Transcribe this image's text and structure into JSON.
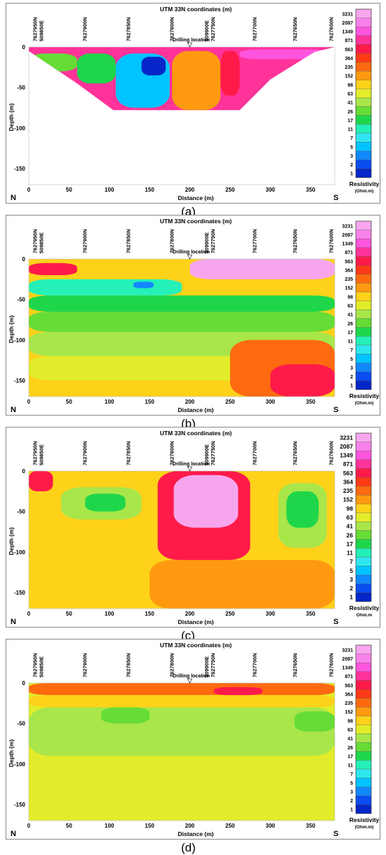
{
  "figure": {
    "captions": [
      "(a)",
      "(b)",
      "(c)",
      "(d)"
    ],
    "drilling_label": "Drilling location",
    "compass": {
      "left": "N",
      "right": "S"
    }
  },
  "chart_data": [
    {
      "panel": "a",
      "type": "heatmap",
      "title": "UTM 33N coordinates (m)",
      "xlabel": "Distance (m)",
      "ylabel": "Depth (m)",
      "xlim": [
        0,
        380
      ],
      "ylim": [
        -170,
        0
      ],
      "x_ticks": [
        0,
        50,
        100,
        150,
        200,
        250,
        300,
        350
      ],
      "y_ticks": [
        0,
        -50,
        -100,
        -150
      ],
      "top_labels": [
        {
          "x": 10,
          "text": [
            "7627950N",
            "509850E"
          ]
        },
        {
          "x": 72,
          "text": [
            "7627900N"
          ]
        },
        {
          "x": 126,
          "text": [
            "7627850N"
          ]
        },
        {
          "x": 180,
          "text": [
            "7627800N"
          ]
        },
        {
          "x": 223,
          "text": [
            "509900E",
            "7627750N"
          ]
        },
        {
          "x": 283,
          "text": [
            "7627700N"
          ]
        },
        {
          "x": 333,
          "text": [
            "7627650N"
          ]
        },
        {
          "x": 378,
          "text": [
            "7627600N"
          ]
        }
      ],
      "drilling_x": 200,
      "legend": {
        "title": "Resistivity",
        "unit": "(Ohm.m)",
        "values": [
          "3231",
          "2087",
          "1349",
          "871",
          "563",
          "364",
          "235",
          "152",
          "98",
          "63",
          "41",
          "26",
          "17",
          "11",
          "7",
          "5",
          "3",
          "2",
          "1"
        ]
      },
      "data_extent": "trapezoid, max depth approx -78 m between x 108 and 238",
      "resistivity_blocks": [
        {
          "x": [
            0,
            380
          ],
          "y": [
            0,
            -8
          ],
          "value": 871
        },
        {
          "x": [
            0,
            60
          ],
          "y": [
            -8,
            -30
          ],
          "value": 26
        },
        {
          "x": [
            60,
            108
          ],
          "y": [
            -8,
            -45
          ],
          "value": 17
        },
        {
          "x": [
            108,
            175
          ],
          "y": [
            -8,
            -75
          ],
          "value": 5
        },
        {
          "x": [
            140,
            170
          ],
          "y": [
            -12,
            -35
          ],
          "value": 1
        },
        {
          "x": [
            178,
            238
          ],
          "y": [
            -5,
            -78
          ],
          "value": 152
        },
        {
          "x": [
            238,
            262
          ],
          "y": [
            -5,
            -60
          ],
          "value": 563
        },
        {
          "x": [
            262,
            380
          ],
          "y": [
            -3,
            -15
          ],
          "value": 1349
        }
      ]
    },
    {
      "panel": "b",
      "type": "heatmap",
      "title": "UTM 33N coordinates (m)",
      "xlabel": "Distance (m)",
      "ylabel": "Depth (m)",
      "xlim": [
        0,
        380
      ],
      "ylim": [
        -170,
        0
      ],
      "x_ticks": [
        0,
        50,
        100,
        150,
        200,
        250,
        300,
        350
      ],
      "y_ticks": [
        0,
        -50,
        -100,
        -150
      ],
      "top_labels": [
        {
          "x": 10,
          "text": [
            "7627950N",
            "509850E"
          ]
        },
        {
          "x": 72,
          "text": [
            "7627900N"
          ]
        },
        {
          "x": 126,
          "text": [
            "7627850N"
          ]
        },
        {
          "x": 180,
          "text": [
            "7627800N"
          ]
        },
        {
          "x": 223,
          "text": [
            "509900E",
            "7627750N"
          ]
        },
        {
          "x": 283,
          "text": [
            "7627700N"
          ]
        },
        {
          "x": 333,
          "text": [
            "7627650N"
          ]
        },
        {
          "x": 378,
          "text": [
            "7627600N"
          ]
        }
      ],
      "drilling_x": 200,
      "legend": {
        "title": "Resistivity",
        "unit": "(Ohm.m)",
        "values": [
          "3231",
          "2087",
          "1349",
          "871",
          "563",
          "364",
          "235",
          "152",
          "98",
          "63",
          "41",
          "26",
          "17",
          "11",
          "7",
          "5",
          "3",
          "2",
          "1"
        ]
      },
      "resistivity_blocks": [
        {
          "x": [
            0,
            380
          ],
          "y": [
            -150,
            -170
          ],
          "value": 98
        },
        {
          "x": [
            0,
            380
          ],
          "y": [
            -120,
            -150
          ],
          "value": 63
        },
        {
          "x": [
            0,
            380
          ],
          "y": [
            -90,
            -120
          ],
          "value": 41
        },
        {
          "x": [
            0,
            380
          ],
          "y": [
            -65,
            -90
          ],
          "value": 26
        },
        {
          "x": [
            0,
            380
          ],
          "y": [
            -45,
            -65
          ],
          "value": 17
        },
        {
          "x": [
            0,
            190
          ],
          "y": [
            -25,
            -45
          ],
          "value": 11
        },
        {
          "x": [
            130,
            155
          ],
          "y": [
            -28,
            -36
          ],
          "value": 3
        },
        {
          "x": [
            0,
            60
          ],
          "y": [
            -5,
            -20
          ],
          "value": 563
        },
        {
          "x": [
            250,
            380
          ],
          "y": [
            -100,
            -170
          ],
          "value": 235
        },
        {
          "x": [
            300,
            380
          ],
          "y": [
            -130,
            -170
          ],
          "value": 563
        },
        {
          "x": [
            200,
            380
          ],
          "y": [
            0,
            -25
          ],
          "value": 3231
        }
      ]
    },
    {
      "panel": "c",
      "type": "heatmap",
      "title": "UTM 33N coordinates (m)",
      "xlabel": "Distance (m)",
      "ylabel": "Depth (m)",
      "xlim": [
        0,
        380
      ],
      "ylim": [
        -170,
        0
      ],
      "x_ticks": [
        0,
        50,
        100,
        150,
        200,
        250,
        300,
        350
      ],
      "y_ticks": [
        0,
        -50,
        -100,
        -150
      ],
      "top_labels": [
        {
          "x": 10,
          "text": [
            "7627950N",
            "509850E"
          ]
        },
        {
          "x": 72,
          "text": [
            "7627900N"
          ]
        },
        {
          "x": 126,
          "text": [
            "7627850N"
          ]
        },
        {
          "x": 180,
          "text": [
            "7627800N"
          ]
        },
        {
          "x": 223,
          "text": [
            "509900E",
            "7627750N"
          ]
        },
        {
          "x": 283,
          "text": [
            "7627700N"
          ]
        },
        {
          "x": 333,
          "text": [
            "7627650N"
          ]
        },
        {
          "x": 378,
          "text": [
            "7627600N"
          ]
        }
      ],
      "drilling_x": 200,
      "legend": {
        "title": "Resistivity",
        "unit": "Ohm.m",
        "values": [
          "3231",
          "2087",
          "1349",
          "871",
          "563",
          "364",
          "235",
          "152",
          "98",
          "63",
          "41",
          "26",
          "17",
          "11",
          "7",
          "5",
          "3",
          "2",
          "1"
        ]
      },
      "resistivity_blocks": [
        {
          "x": [
            0,
            30
          ],
          "y": [
            0,
            -25
          ],
          "value": 563
        },
        {
          "x": [
            40,
            140
          ],
          "y": [
            -20,
            -60
          ],
          "value": 41
        },
        {
          "x": [
            70,
            120
          ],
          "y": [
            -28,
            -50
          ],
          "value": 17
        },
        {
          "x": [
            160,
            275
          ],
          "y": [
            0,
            -110
          ],
          "value": 563
        },
        {
          "x": [
            180,
            260
          ],
          "y": [
            -5,
            -70
          ],
          "value": 3231
        },
        {
          "x": [
            310,
            370
          ],
          "y": [
            -15,
            -95
          ],
          "value": 41
        },
        {
          "x": [
            320,
            360
          ],
          "y": [
            -25,
            -70
          ],
          "value": 17
        },
        {
          "x": [
            150,
            380
          ],
          "y": [
            -110,
            -170
          ],
          "value": 152
        }
      ]
    },
    {
      "panel": "d",
      "type": "heatmap",
      "title": "UTM 33N coordinates (m)",
      "xlabel": "Distance (m)",
      "ylabel": "Depth (m)",
      "xlim": [
        0,
        380
      ],
      "ylim": [
        -170,
        0
      ],
      "x_ticks": [
        0,
        50,
        100,
        150,
        200,
        250,
        300,
        350
      ],
      "y_ticks": [
        0,
        -50,
        -100,
        -150
      ],
      "top_labels": [
        {
          "x": 10,
          "text": [
            "7627950N",
            "509850E"
          ]
        },
        {
          "x": 72,
          "text": [
            "7627900N"
          ]
        },
        {
          "x": 126,
          "text": [
            "7627850N"
          ]
        },
        {
          "x": 180,
          "text": [
            "7627800N"
          ]
        },
        {
          "x": 223,
          "text": [
            "509900E",
            "7627750N"
          ]
        },
        {
          "x": 283,
          "text": [
            "7627700N"
          ]
        },
        {
          "x": 333,
          "text": [
            "7627650N"
          ]
        },
        {
          "x": 378,
          "text": [
            "7627600N"
          ]
        }
      ],
      "drilling_x": 200,
      "legend": {
        "title": "Resistivity",
        "unit": "(Ohm.m)",
        "values": [
          "3231",
          "2087",
          "1349",
          "871",
          "563",
          "364",
          "235",
          "152",
          "98",
          "63",
          "41",
          "26",
          "17",
          "11",
          "7",
          "5",
          "3",
          "2",
          "1"
        ]
      },
      "resistivity_blocks": [
        {
          "x": [
            0,
            380
          ],
          "y": [
            0,
            -15
          ],
          "value": 235
        },
        {
          "x": [
            0,
            380
          ],
          "y": [
            -15,
            -30
          ],
          "value": 98
        },
        {
          "x": [
            0,
            380
          ],
          "y": [
            -30,
            -90
          ],
          "value": 41
        },
        {
          "x": [
            90,
            150
          ],
          "y": [
            -30,
            -50
          ],
          "value": 26
        },
        {
          "x": [
            330,
            380
          ],
          "y": [
            -35,
            -60
          ],
          "value": 26
        },
        {
          "x": [
            0,
            380
          ],
          "y": [
            -90,
            -170
          ],
          "value": 63
        },
        {
          "x": [
            230,
            290
          ],
          "y": [
            -5,
            -15
          ],
          "value": 563
        }
      ]
    }
  ]
}
